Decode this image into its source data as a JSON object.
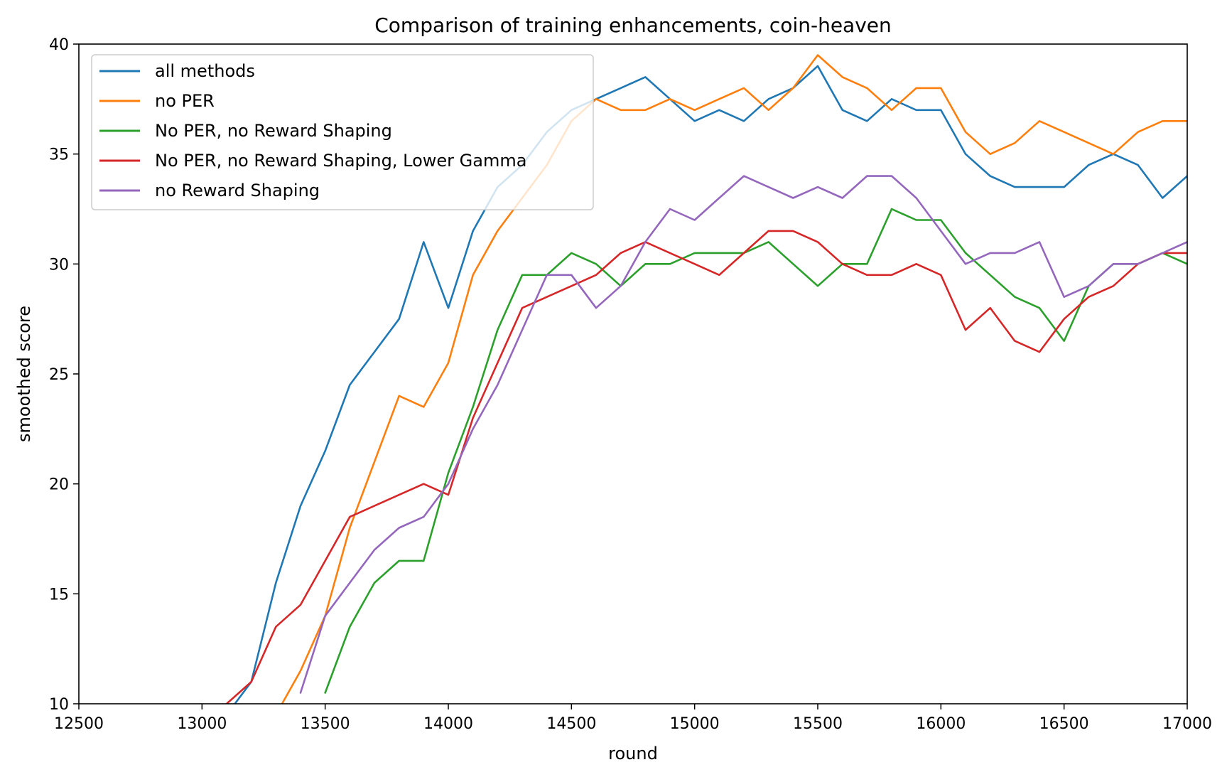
{
  "chart_data": {
    "type": "line",
    "title": "Comparison of training enhancements, coin-heaven",
    "xlabel": "round",
    "ylabel": "smoothed score",
    "xlim": [
      12500,
      17000
    ],
    "ylim": [
      10,
      40
    ],
    "xticks": [
      "12500",
      "13000",
      "13500",
      "14000",
      "14500",
      "15000",
      "15500",
      "16000",
      "16500",
      "17000"
    ],
    "yticks": [
      "10",
      "15",
      "20",
      "25",
      "30",
      "35",
      "40"
    ],
    "grid": false,
    "legend_position": "upper-left",
    "x": [
      13100,
      13200,
      13300,
      13400,
      13500,
      13600,
      13700,
      13800,
      13900,
      14000,
      14100,
      14200,
      14300,
      14400,
      14500,
      14600,
      14700,
      14800,
      14900,
      15000,
      15100,
      15200,
      15300,
      15400,
      15500,
      15600,
      15700,
      15800,
      15900,
      16000,
      16100,
      16200,
      16300,
      16400,
      16500,
      16600,
      16700,
      16800,
      16900,
      17000
    ],
    "series": [
      {
        "name": "all methods",
        "color": "#1f77b4",
        "values": [
          9.5,
          11.0,
          15.5,
          19.0,
          21.5,
          24.5,
          26.0,
          27.5,
          31.0,
          28.0,
          31.5,
          33.5,
          34.5,
          36.0,
          37.0,
          37.5,
          38.0,
          38.5,
          37.5,
          36.5,
          37.0,
          36.5,
          37.5,
          38.0,
          39.0,
          37.0,
          36.5,
          37.5,
          37.0,
          37.0,
          35.0,
          34.0,
          33.5,
          33.5,
          33.5,
          34.5,
          35.0,
          34.5,
          33.0,
          34.0
        ]
      },
      {
        "name": "no PER",
        "color": "#ff7f0e",
        "values": [
          null,
          null,
          9.5,
          11.5,
          14.0,
          18.0,
          21.0,
          24.0,
          23.5,
          25.5,
          29.5,
          31.5,
          33.0,
          34.5,
          36.5,
          37.5,
          37.0,
          37.0,
          37.5,
          37.0,
          37.5,
          38.0,
          37.0,
          38.0,
          39.5,
          38.5,
          38.0,
          37.0,
          38.0,
          38.0,
          36.0,
          35.0,
          35.5,
          36.5,
          36.0,
          35.5,
          35.0,
          36.0,
          36.5,
          36.5
        ]
      },
      {
        "name": "No PER, no Reward Shaping",
        "color": "#2ca02c",
        "values": [
          null,
          null,
          null,
          null,
          10.5,
          13.5,
          15.5,
          16.5,
          16.5,
          20.5,
          23.5,
          27.0,
          29.5,
          29.5,
          30.5,
          30.0,
          29.0,
          30.0,
          30.0,
          30.5,
          30.5,
          30.5,
          31.0,
          30.0,
          29.0,
          30.0,
          30.0,
          32.5,
          32.0,
          32.0,
          30.5,
          29.5,
          28.5,
          28.0,
          26.5,
          29.0,
          30.0,
          30.0,
          30.5,
          30.0
        ]
      },
      {
        "name": "No PER, no Reward Shaping, Lower Gamma",
        "color": "#d62728",
        "values": [
          10.0,
          11.0,
          13.5,
          14.5,
          16.5,
          18.5,
          19.0,
          19.5,
          20.0,
          19.5,
          23.0,
          25.5,
          28.0,
          28.5,
          29.0,
          29.5,
          30.5,
          31.0,
          30.5,
          30.0,
          29.5,
          30.5,
          31.5,
          31.5,
          31.0,
          30.0,
          29.5,
          29.5,
          30.0,
          29.5,
          27.0,
          28.0,
          26.5,
          26.0,
          27.5,
          28.5,
          29.0,
          30.0,
          30.5,
          30.5
        ]
      },
      {
        "name": "no Reward Shaping",
        "color": "#9467bd",
        "values": [
          null,
          null,
          null,
          10.5,
          14.0,
          15.5,
          17.0,
          18.0,
          18.5,
          20.0,
          22.5,
          24.5,
          27.0,
          29.5,
          29.5,
          28.0,
          29.0,
          31.0,
          32.5,
          32.0,
          33.0,
          34.0,
          33.5,
          33.0,
          33.5,
          33.0,
          34.0,
          34.0,
          33.0,
          31.5,
          30.0,
          30.5,
          30.5,
          31.0,
          28.5,
          29.0,
          30.0,
          30.0,
          30.5,
          31.0
        ]
      }
    ]
  }
}
